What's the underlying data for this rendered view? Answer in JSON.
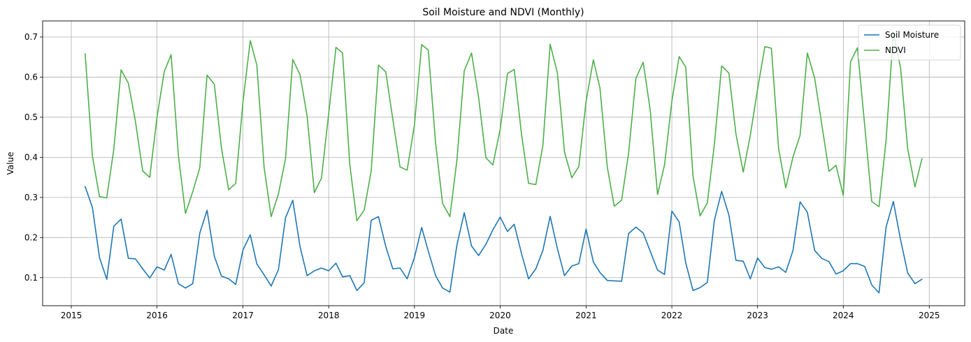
{
  "chart_data": {
    "type": "line",
    "title": "Soil Moisture and NDVI (Monthly)",
    "xlabel": "Date",
    "ylabel": "Value",
    "xlim": [
      "2014-09-01",
      "2025-06-01"
    ],
    "ylim": [
      0.03,
      0.74
    ],
    "grid": true,
    "legend_position": "top-right",
    "x_ticks": [
      "2015",
      "2016",
      "2017",
      "2018",
      "2019",
      "2020",
      "2021",
      "2022",
      "2023",
      "2024",
      "2025"
    ],
    "y_ticks": [
      "0.1",
      "0.2",
      "0.3",
      "0.4",
      "0.5",
      "0.6",
      "0.7"
    ],
    "x": [
      "2015-03",
      "2015-04",
      "2015-05",
      "2015-06",
      "2015-07",
      "2015-08",
      "2015-09",
      "2015-10",
      "2015-11",
      "2015-12",
      "2016-01",
      "2016-02",
      "2016-03",
      "2016-04",
      "2016-05",
      "2016-06",
      "2016-07",
      "2016-08",
      "2016-09",
      "2016-10",
      "2016-11",
      "2016-12",
      "2017-01",
      "2017-02",
      "2017-03",
      "2017-04",
      "2017-05",
      "2017-06",
      "2017-07",
      "2017-08",
      "2017-09",
      "2017-10",
      "2017-11",
      "2017-12",
      "2018-01",
      "2018-02",
      "2018-03",
      "2018-04",
      "2018-05",
      "2018-06",
      "2018-07",
      "2018-08",
      "2018-09",
      "2018-10",
      "2018-11",
      "2018-12",
      "2019-01",
      "2019-02",
      "2019-03",
      "2019-04",
      "2019-05",
      "2019-06",
      "2019-07",
      "2019-08",
      "2019-09",
      "2019-10",
      "2019-11",
      "2019-12",
      "2020-01",
      "2020-02",
      "2020-03",
      "2020-04",
      "2020-05",
      "2020-06",
      "2020-07",
      "2020-08",
      "2020-09",
      "2020-10",
      "2020-11",
      "2020-12",
      "2021-01",
      "2021-02",
      "2021-03",
      "2021-04",
      "2021-05",
      "2021-06",
      "2021-07",
      "2021-08",
      "2021-09",
      "2021-10",
      "2021-11",
      "2021-12",
      "2022-01",
      "2022-02",
      "2022-03",
      "2022-04",
      "2022-05",
      "2022-06",
      "2022-07",
      "2022-08",
      "2022-09",
      "2022-10",
      "2022-11",
      "2022-12",
      "2023-01",
      "2023-02",
      "2023-03",
      "2023-04",
      "2023-05",
      "2023-06",
      "2023-07",
      "2023-08",
      "2023-09",
      "2023-10",
      "2023-11",
      "2023-12",
      "2024-01",
      "2024-02",
      "2024-03",
      "2024-04",
      "2024-05",
      "2024-06",
      "2024-07",
      "2024-08",
      "2024-09",
      "2024-10",
      "2024-11",
      "2024-12"
    ],
    "series": [
      {
        "name": "Soil Moisture",
        "color": "#1f77b4",
        "values": [
          0.327,
          0.275,
          0.15,
          0.096,
          0.228,
          0.246,
          0.148,
          0.147,
          0.122,
          0.099,
          0.127,
          0.119,
          0.158,
          0.085,
          0.074,
          0.085,
          0.211,
          0.268,
          0.153,
          0.104,
          0.097,
          0.083,
          0.169,
          0.207,
          0.134,
          0.107,
          0.079,
          0.12,
          0.249,
          0.293,
          0.177,
          0.105,
          0.117,
          0.124,
          0.117,
          0.136,
          0.102,
          0.105,
          0.068,
          0.087,
          0.243,
          0.252,
          0.178,
          0.122,
          0.124,
          0.097,
          0.15,
          0.225,
          0.166,
          0.105,
          0.074,
          0.064,
          0.181,
          0.262,
          0.179,
          0.155,
          0.183,
          0.219,
          0.251,
          0.215,
          0.233,
          0.16,
          0.097,
          0.122,
          0.168,
          0.253,
          0.172,
          0.105,
          0.129,
          0.135,
          0.221,
          0.139,
          0.113,
          0.093,
          0.092,
          0.091,
          0.21,
          0.226,
          0.211,
          0.166,
          0.119,
          0.108,
          0.266,
          0.239,
          0.137,
          0.068,
          0.075,
          0.088,
          0.243,
          0.315,
          0.256,
          0.143,
          0.141,
          0.097,
          0.149,
          0.125,
          0.121,
          0.127,
          0.113,
          0.168,
          0.289,
          0.263,
          0.168,
          0.148,
          0.14,
          0.109,
          0.117,
          0.135,
          0.135,
          0.128,
          0.082,
          0.062,
          0.226,
          0.29,
          0.194,
          0.112,
          0.085,
          0.096
        ]
      },
      {
        "name": "NDVI",
        "color": "#4daf4a",
        "values": [
          0.658,
          0.403,
          0.302,
          0.299,
          0.42,
          0.618,
          0.585,
          0.49,
          0.366,
          0.35,
          0.5,
          0.614,
          0.656,
          0.404,
          0.26,
          0.314,
          0.374,
          0.605,
          0.582,
          0.424,
          0.319,
          0.335,
          0.539,
          0.691,
          0.63,
          0.375,
          0.252,
          0.309,
          0.396,
          0.644,
          0.606,
          0.503,
          0.312,
          0.348,
          0.509,
          0.674,
          0.66,
          0.381,
          0.242,
          0.268,
          0.366,
          0.63,
          0.613,
          0.495,
          0.376,
          0.368,
          0.48,
          0.681,
          0.667,
          0.436,
          0.285,
          0.252,
          0.393,
          0.616,
          0.66,
          0.55,
          0.399,
          0.381,
          0.47,
          0.609,
          0.619,
          0.458,
          0.335,
          0.332,
          0.43,
          0.682,
          0.61,
          0.413,
          0.349,
          0.377,
          0.54,
          0.643,
          0.573,
          0.376,
          0.278,
          0.293,
          0.41,
          0.597,
          0.637,
          0.518,
          0.307,
          0.381,
          0.54,
          0.651,
          0.625,
          0.354,
          0.254,
          0.286,
          0.432,
          0.628,
          0.61,
          0.458,
          0.363,
          0.455,
          0.57,
          0.676,
          0.672,
          0.42,
          0.324,
          0.401,
          0.455,
          0.66,
          0.598,
          0.484,
          0.365,
          0.38,
          0.305,
          0.638,
          0.673,
          0.48,
          0.29,
          0.277,
          0.442,
          0.712,
          0.622,
          0.422,
          0.326,
          0.397
        ]
      }
    ]
  }
}
